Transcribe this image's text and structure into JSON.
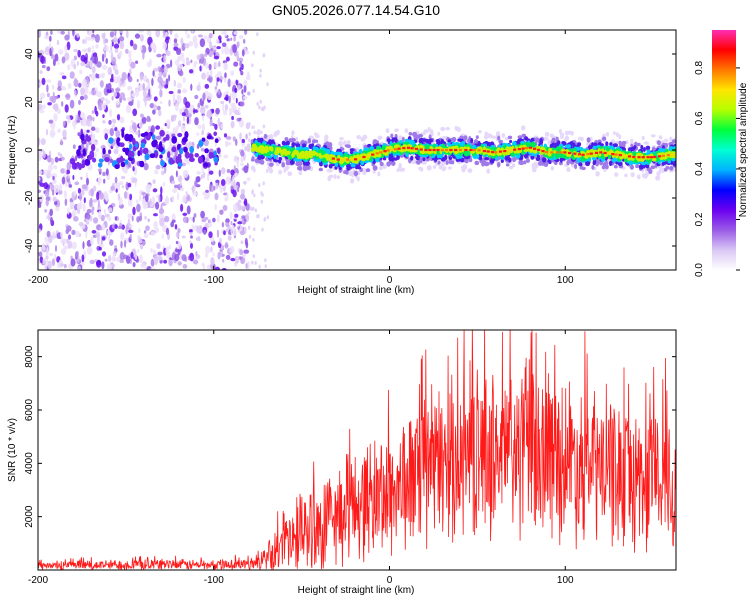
{
  "figure_title": "GN05.2026.077.14.54.G10",
  "chart_data": [
    {
      "type": "heatmap",
      "title": "GN05.2026.077.14.54.G10",
      "xlabel": "Height of straight line (km)",
      "ylabel": "Frequency (Hz)",
      "xlim": [
        -200,
        163
      ],
      "ylim": [
        -50,
        50
      ],
      "x_ticks": [
        -200,
        -100,
        0,
        100
      ],
      "y_ticks": [
        -40,
        -20,
        0,
        20,
        40
      ],
      "colorbar": {
        "label": "Normalized spectral amplitude",
        "range": [
          0.0,
          0.95
        ],
        "ticks": [
          "0.0",
          "0.2",
          "0.4",
          "0.6",
          "0.8"
        ],
        "colors": [
          "#ffffff",
          "#d9c7f5",
          "#9a5ae6",
          "#6a00f0",
          "#0000ff",
          "#00b4ff",
          "#00ffd2",
          "#00ff3c",
          "#b4ff00",
          "#ffe600",
          "#ff7800",
          "#ff0000",
          "#ff2db4"
        ]
      },
      "noise_region_x": [
        -200,
        -80
      ],
      "signal_track": {
        "x": [
          -78,
          -70,
          -60,
          -50,
          -40,
          -30,
          -20,
          -10,
          0,
          10,
          20,
          30,
          40,
          50,
          60,
          70,
          80,
          90,
          100,
          110,
          120,
          130,
          140,
          150,
          160
        ],
        "freq": [
          1,
          0,
          -1,
          -2,
          -2,
          -4,
          -4,
          -2,
          0,
          1,
          0,
          0,
          0,
          0,
          -1,
          0,
          1,
          -1,
          -1,
          -2,
          -1,
          -2,
          -3,
          -3,
          -2
        ]
      }
    },
    {
      "type": "line",
      "xlabel": "Height of straight line (km)",
      "ylabel": "SNR (10 * v/v)",
      "xlim": [
        -200,
        163
      ],
      "ylim": [
        0,
        9000
      ],
      "x_ticks": [
        -200,
        -100,
        0,
        100
      ],
      "y_ticks": [
        2000,
        4000,
        6000,
        8000
      ],
      "series": [
        {
          "name": "SNR",
          "color": "#ff1a1a",
          "x": [
            -200,
            -180,
            -160,
            -140,
            -120,
            -100,
            -80,
            -70,
            -60,
            -50,
            -40,
            -30,
            -20,
            -10,
            0,
            10,
            20,
            30,
            40,
            50,
            60,
            70,
            80,
            90,
            100,
            110,
            120,
            130,
            140,
            150,
            160
          ],
          "values": [
            150,
            170,
            190,
            210,
            200,
            190,
            220,
            400,
            900,
            1300,
            1700,
            2000,
            2500,
            2700,
            2900,
            3300,
            3600,
            4000,
            4300,
            4300,
            4400,
            4500,
            4500,
            4300,
            4300,
            4000,
            3800,
            3700,
            3400,
            3500,
            3400
          ],
          "spread": [
            150,
            170,
            190,
            210,
            200,
            190,
            220,
            500,
            1200,
            1500,
            1700,
            1900,
            2000,
            2200,
            2400,
            2500,
            2700,
            2800,
            2900,
            3000,
            3000,
            3200,
            3300,
            3000,
            3000,
            2900,
            2800,
            2700,
            2700,
            2600,
            2500
          ]
        }
      ]
    }
  ]
}
